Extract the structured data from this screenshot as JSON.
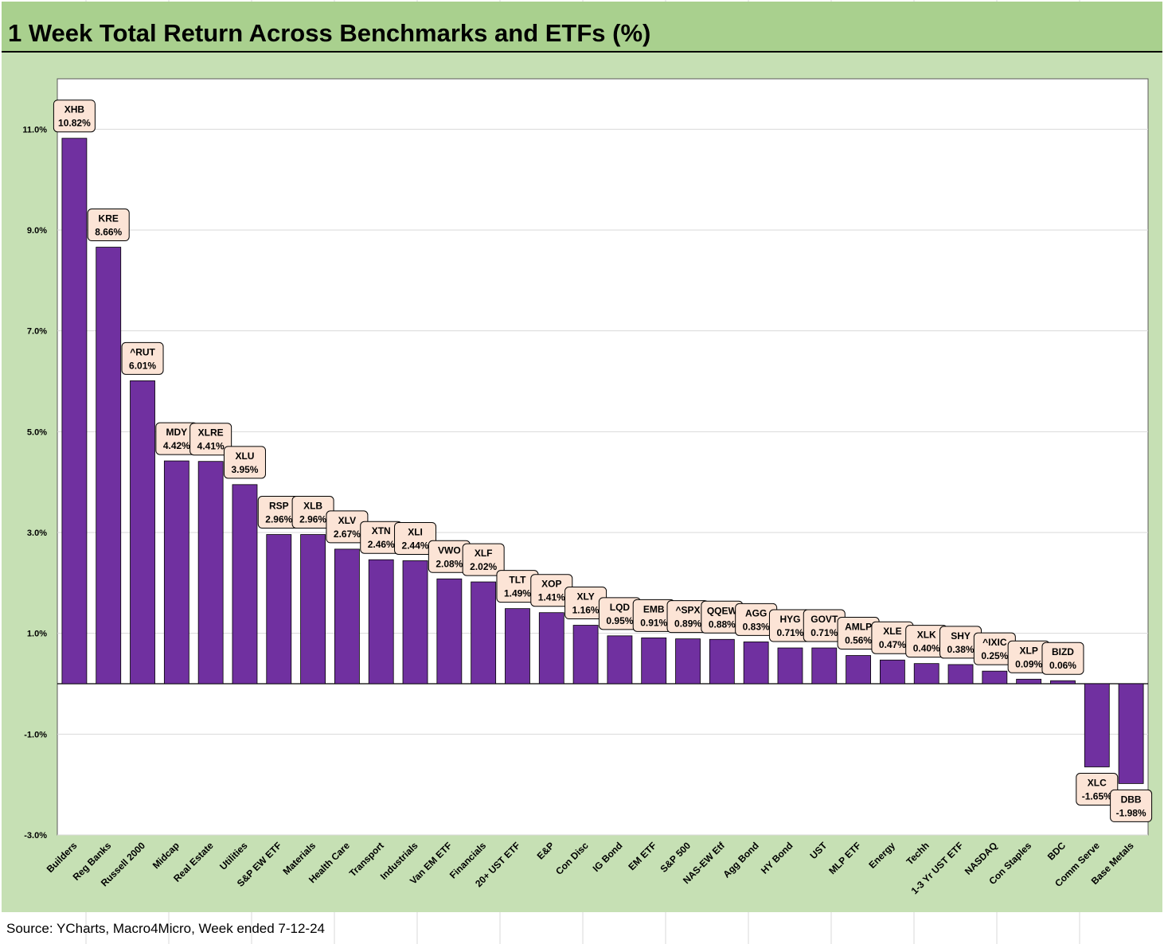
{
  "title": "1 Week Total Return Across Benchmarks and ETFs (%)",
  "source": "Source: YCharts, Macro4Micro, Week ended 7-12-24",
  "colors": {
    "title_bg": "#a9d08e",
    "frame_bg": "#c6e0b4",
    "bar": "#7030a0",
    "label_bg": "#fce4d6",
    "gridline": "#d9d9d9"
  },
  "chart_data": {
    "type": "bar",
    "ylim": [
      -3.0,
      12.0
    ],
    "yticks": [
      -3.0,
      -1.0,
      1.0,
      3.0,
      5.0,
      7.0,
      9.0,
      11.0
    ],
    "ytick_labels": [
      "-3.0%",
      "-1.0%",
      "1.0%",
      "3.0%",
      "5.0%",
      "7.0%",
      "9.0%",
      "11.0%"
    ],
    "grid": true,
    "categories": [
      "Builders",
      "Reg Banks",
      "Russell 2000",
      "Midcap",
      "Real Estate",
      "Utilities",
      "S&P EW ETF",
      "Materials",
      "Health Care",
      "Transport",
      "Industrials",
      "Van EM ETF",
      "Financials",
      "20+ UST ETF",
      "E&P",
      "Con Disc",
      "IG Bond",
      "EM ETF",
      "S&P 500",
      "NAS-EW Etf",
      "Agg Bond",
      "HY Bond",
      "UST",
      "MLP ETF",
      "Energy",
      "Techh",
      "1-3 Yr UST ETF",
      "NASDAQ",
      "Con Staples",
      "BDC",
      "Comm Serve",
      "Base Metals"
    ],
    "tickers": [
      "XHB",
      "KRE",
      "^RUT",
      "MDY",
      "XLRE",
      "XLU",
      "RSP",
      "XLB",
      "XLV",
      "XTN",
      "XLI",
      "VWO",
      "XLF",
      "TLT",
      "XOP",
      "XLY",
      "LQD",
      "EMB",
      "^SPX",
      "QQEW",
      "AGG",
      "HYG",
      "GOVT",
      "AMLP",
      "XLE",
      "XLK",
      "SHY",
      "^IXIC",
      "XLP",
      "BIZD",
      "XLC",
      "DBB"
    ],
    "values": [
      10.82,
      8.66,
      6.01,
      4.42,
      4.41,
      3.95,
      2.96,
      2.96,
      2.67,
      2.46,
      2.44,
      2.08,
      2.02,
      1.49,
      1.41,
      1.16,
      0.95,
      0.91,
      0.89,
      0.88,
      0.83,
      0.71,
      0.71,
      0.56,
      0.47,
      0.4,
      0.38,
      0.25,
      0.09,
      0.06,
      -1.65,
      -1.98
    ],
    "value_labels": [
      "10.82%",
      "8.66%",
      "6.01%",
      "4.42%",
      "4.41%",
      "3.95%",
      "2.96%",
      "2.96%",
      "2.67%",
      "2.46%",
      "2.44%",
      "2.08%",
      "2.02%",
      "1.49%",
      "1.41%",
      "1.16%",
      "0.95%",
      "0.91%",
      "0.89%",
      "0.88%",
      "0.83%",
      "0.71%",
      "0.71%",
      "0.56%",
      "0.47%",
      "0.40%",
      "0.38%",
      "0.25%",
      "0.09%",
      "0.06%",
      "-1.65%",
      "-1.98%"
    ]
  }
}
